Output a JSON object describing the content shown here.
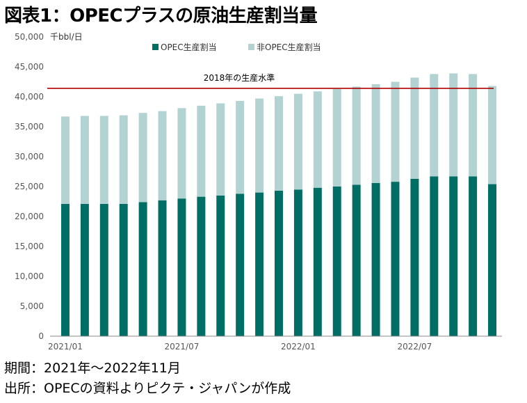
{
  "title": "図表1：OPECプラスの原油生産割当量",
  "notes": {
    "period": "期間：2021年～2022年11月",
    "source": "出所：OPECの資料よりピクテ・ジャパンが作成"
  },
  "colors": {
    "opec": "#006E65",
    "non_opec": "#B3D3D3",
    "reference_line": "#B00000"
  },
  "chart_data": {
    "type": "bar",
    "stacked": true,
    "unit": "千bbl/日",
    "categories": [
      "2021/01",
      "2021/02",
      "2021/03",
      "2021/04",
      "2021/05",
      "2021/06",
      "2021/07",
      "2021/08",
      "2021/09",
      "2021/10",
      "2021/11",
      "2021/12",
      "2022/01",
      "2022/02",
      "2022/03",
      "2022/04",
      "2022/05",
      "2022/06",
      "2022/07",
      "2022/08",
      "2022/09",
      "2022/10",
      "2022/11"
    ],
    "x_tick_labels": [
      {
        "index": 0,
        "label": "2021/01"
      },
      {
        "index": 6,
        "label": "2021/07"
      },
      {
        "index": 12,
        "label": "2022/01"
      },
      {
        "index": 18,
        "label": "2022/07"
      }
    ],
    "series": [
      {
        "name": "OPEC生産割当",
        "color": "#006E65",
        "values": [
          22100,
          22100,
          22100,
          22100,
          22400,
          22700,
          23000,
          23300,
          23500,
          23800,
          24000,
          24300,
          24500,
          24800,
          25000,
          25300,
          25600,
          25800,
          26300,
          26700,
          26700,
          26700,
          25400
        ]
      },
      {
        "name": "非OPEC生産割当",
        "color": "#B3D3D3",
        "values": [
          14600,
          14700,
          14700,
          14800,
          14900,
          14900,
          15100,
          15200,
          15400,
          15500,
          15700,
          15800,
          16000,
          16100,
          16300,
          16400,
          16500,
          16700,
          16900,
          17100,
          17200,
          17100,
          16400
        ]
      }
    ],
    "reference_line": {
      "label": "2018年の生産水準",
      "value": 41400
    },
    "ylim": [
      0,
      50000
    ],
    "yticks": [
      "0",
      "5,000",
      "10,000",
      "15,000",
      "20,000",
      "25,000",
      "30,000",
      "35,000",
      "40,000",
      "45,000",
      "50,000"
    ],
    "ytick_values": [
      0,
      5000,
      10000,
      15000,
      20000,
      25000,
      30000,
      35000,
      40000,
      45000,
      50000
    ],
    "legend_position": "top",
    "grid": false
  }
}
